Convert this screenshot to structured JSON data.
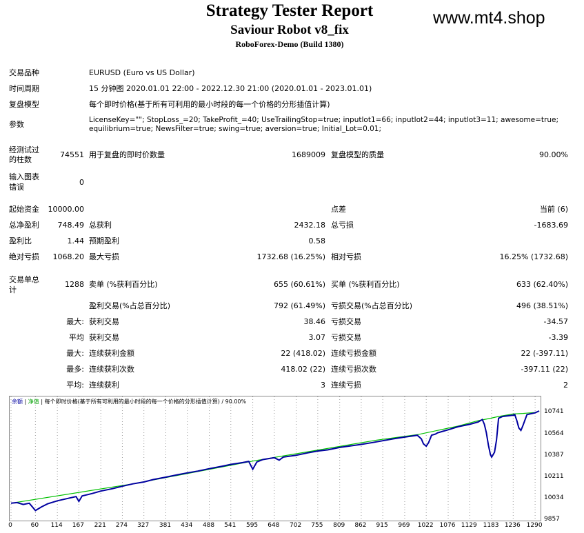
{
  "header": {
    "title": "Strategy Tester Report",
    "robot": "Saviour Robot v8_fix",
    "server": "RoboForex-Demo (Build 1380)",
    "watermark": "www.mt4.shop"
  },
  "info": {
    "symbol_label": "交易品种",
    "symbol_value": "EURUSD (Euro vs US Dollar)",
    "period_label": "时间周期",
    "period_value": "15 分钟图 2020.01.01 22:00 - 2022.12.30 21:00 (2020.01.01 - 2023.01.01)",
    "model_label": "复盘模型",
    "model_value": "每个即时价格(基于所有可利用的最小时段的每一个价格的分形插值计算)",
    "params_label": "参数",
    "params_line1": "LicenseKey=\"\"; StopLoss_=20; TakeProfit_=40; UseTrailingStop=true; inputlot1=66; inputlot2=44; inputlot3=11; awesome=true;",
    "params_line2": "equilibrium=true; NewsFilter=true; swing=true; aversion=true; Initial_Lot=0.01;"
  },
  "bars": {
    "bars_label_1": "经测试过",
    "bars_label_2": "的柱数",
    "bars_value": "74551",
    "ticks_label": "用于复盘的即时价数量",
    "ticks_value": "1689009",
    "quality_label": "复盘模型的质量",
    "quality_value": "90.00%",
    "errors_label_1": "输入图表",
    "errors_label_2": "错误",
    "errors_value": "0"
  },
  "stats": {
    "initial_label": "起始资金",
    "initial_value": "10000.00",
    "spread_label": "点差",
    "spread_value": "当前 (6)",
    "net_label": "总净盈利",
    "net_value": "748.49",
    "gross_profit_label": "总获利",
    "gross_profit_value": "2432.18",
    "gross_loss_label": "总亏损",
    "gross_loss_value": "-1683.69",
    "pf_label": "盈利比",
    "pf_value": "1.44",
    "payoff_label": "预期盈利",
    "payoff_value": "0.58",
    "abs_dd_label": "绝对亏损",
    "abs_dd_value": "1068.20",
    "max_dd_label": "最大亏损",
    "max_dd_value": "1732.68 (16.25%)",
    "rel_dd_label": "相对亏损",
    "rel_dd_value": "16.25% (1732.68)"
  },
  "trades": {
    "total_label_1": "交易单总",
    "total_label_2": "计",
    "total_value": "1288",
    "short_label": "卖单 (%获利百分比)",
    "short_value": "655 (60.61%)",
    "long_label": "买单 (%获利百分比)",
    "long_value": "633 (62.40%)",
    "win_label": "盈利交易(%占总百分比)",
    "win_value": "792 (61.49%)",
    "loss_label": "亏损交易(%占总百分比)",
    "loss_value": "496 (38.51%)",
    "max_prefix": "最大:",
    "max_win_label": "获利交易",
    "max_win_value": "38.46",
    "max_loss_label": "亏损交易",
    "max_loss_value": "-34.57",
    "avg_prefix": "平均",
    "avg_win_label": "获利交易",
    "avg_win_value": "3.07",
    "avg_loss_label": "亏损交易",
    "avg_loss_value": "-3.39",
    "max2_prefix": "最大:",
    "cons_win_amt_label": "连续获利金额",
    "cons_win_amt_value": "22 (418.02)",
    "cons_loss_amt_label": "连续亏损金额",
    "cons_loss_amt_value": "22 (-397.11)",
    "most_prefix": "最多:",
    "cons_win_cnt_label": "连续获利次数",
    "cons_win_cnt_value": "418.02 (22)",
    "cons_loss_cnt_label": "连续亏损次数",
    "cons_loss_cnt_value": "-397.11 (22)",
    "avg2_prefix": "平均:",
    "avg_cons_win_label": "连续获利",
    "avg_cons_win_value": "3",
    "avg_cons_loss_label": "连续亏损",
    "avg_cons_loss_value": "2"
  },
  "chart_data": {
    "type": "line",
    "legend_balance": "余额",
    "legend_equity": "净值",
    "legend_text": "每个即时价格(基于所有可利用的最小时段的每一个价格的分形插值计算) / 90.00%",
    "balance_color": "#0000a0",
    "equity_color": "#00c000",
    "ylim": [
      9857,
      10800
    ],
    "xlim": [
      0,
      1300
    ],
    "yticks": [
      "10741",
      "10564",
      "10387",
      "10211",
      "10034",
      "9857"
    ],
    "yticks_values": [
      10741,
      10564,
      10387,
      10211,
      10034,
      9857
    ],
    "xticks": [
      "0",
      "60",
      "114",
      "167",
      "221",
      "274",
      "327",
      "381",
      "434",
      "488",
      "541",
      "595",
      "648",
      "702",
      "755",
      "809",
      "862",
      "915",
      "969",
      "1022",
      "1076",
      "1129",
      "1183",
      "1236",
      "1290"
    ],
    "series": [
      {
        "name": "余额",
        "x": [
          0,
          15,
          30,
          45,
          60,
          75,
          90,
          114,
          140,
          160,
          167,
          175,
          200,
          221,
          250,
          274,
          300,
          327,
          350,
          381,
          410,
          434,
          460,
          488,
          520,
          541,
          570,
          585,
          595,
          605,
          620,
          648,
          660,
          670,
          702,
          730,
          755,
          780,
          809,
          830,
          862,
          890,
          915,
          940,
          969,
          990,
          1000,
          1010,
          1015,
          1022,
          1028,
          1035,
          1045,
          1050,
          1060,
          1076,
          1100,
          1129,
          1150,
          1160,
          1165,
          1170,
          1175,
          1180,
          1183,
          1190,
          1195,
          1200,
          1210,
          1236,
          1240,
          1245,
          1250,
          1255,
          1260,
          1270,
          1290,
          1300
        ],
        "y": [
          10000,
          10005,
          9990,
          10000,
          9940,
          9970,
          9995,
          10020,
          10040,
          10055,
          10015,
          10060,
          10080,
          10100,
          10120,
          10140,
          10160,
          10175,
          10195,
          10215,
          10235,
          10250,
          10265,
          10285,
          10305,
          10320,
          10335,
          10345,
          10280,
          10340,
          10360,
          10375,
          10355,
          10380,
          10395,
          10415,
          10430,
          10440,
          10460,
          10470,
          10485,
          10500,
          10515,
          10530,
          10545,
          10555,
          10560,
          10530,
          10490,
          10470,
          10500,
          10560,
          10570,
          10580,
          10590,
          10605,
          10630,
          10650,
          10670,
          10690,
          10650,
          10580,
          10480,
          10400,
          10380,
          10420,
          10520,
          10700,
          10715,
          10725,
          10730,
          10680,
          10620,
          10600,
          10640,
          10730,
          10745,
          10760
        ]
      },
      {
        "name": "净值",
        "x": [
          0,
          300,
          600,
          900,
          1000,
          1100,
          1150,
          1180,
          1200,
          1236,
          1260,
          1290,
          1300
        ],
        "y": [
          10000,
          10160,
          10350,
          10520,
          10565,
          10635,
          10680,
          10700,
          10715,
          10735,
          10740,
          10748,
          10760
        ]
      }
    ]
  }
}
